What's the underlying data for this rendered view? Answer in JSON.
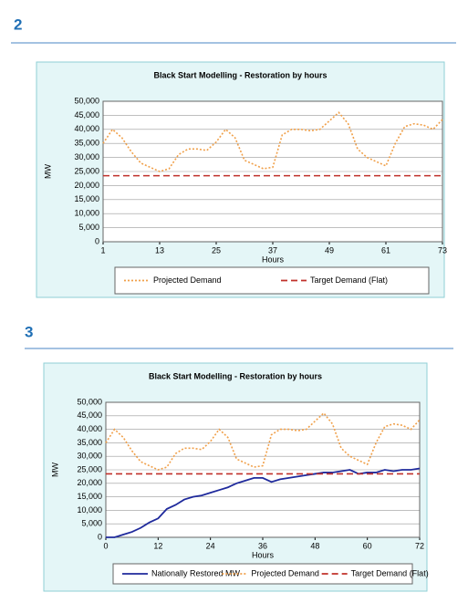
{
  "headings": [
    "2",
    "3"
  ],
  "chart_data": [
    {
      "type": "line",
      "title": "Black Start Modelling - Restoration by hours",
      "x_label": "Hours",
      "y_label": "MW",
      "xlim": [
        1,
        73
      ],
      "xticks": [
        1,
        13,
        25,
        37,
        49,
        61,
        73
      ],
      "ylim": [
        0,
        50000
      ],
      "yticks": [
        0,
        {
          "value": 5000,
          "label": "5,000"
        },
        {
          "value": 10000,
          "label": "10,000"
        },
        {
          "value": 15000,
          "label": "15,000"
        },
        {
          "value": 20000,
          "label": "20,000"
        },
        {
          "value": 25000,
          "label": "25,000"
        },
        {
          "value": 30000,
          "label": "30,000"
        },
        {
          "value": 35000,
          "label": "35,000"
        },
        {
          "value": 40000,
          "label": "40,000"
        },
        {
          "value": 45000,
          "label": "45,000"
        },
        {
          "value": 50000,
          "label": "50,000"
        }
      ],
      "grid": true,
      "series": [
        {
          "name": "Projected Demand",
          "color": "#f0a04a",
          "style": "dotted",
          "x": [
            1,
            3,
            5,
            7,
            9,
            11,
            13,
            15,
            17,
            19,
            21,
            23,
            25,
            27,
            29,
            31,
            33,
            35,
            37,
            39,
            41,
            43,
            45,
            47,
            49,
            51,
            53,
            55,
            57,
            59,
            61,
            63,
            65,
            67,
            69,
            71,
            73
          ],
          "values": [
            35000,
            40000,
            37000,
            32000,
            28000,
            26500,
            25000,
            26000,
            31000,
            33000,
            33000,
            32500,
            35500,
            40000,
            37000,
            29000,
            27500,
            26000,
            26500,
            38000,
            40000,
            40000,
            39500,
            40000,
            43000,
            46000,
            42000,
            33000,
            30000,
            28500,
            27000,
            35000,
            41000,
            42000,
            41500,
            40000,
            43500
          ]
        },
        {
          "name": "Target Demand (Flat)",
          "color": "#c0302a",
          "style": "dashed",
          "x": [
            1,
            73
          ],
          "values": [
            23500,
            23500
          ]
        }
      ]
    },
    {
      "type": "line",
      "title": "Black Start Modelling - Restoration by hours",
      "x_label": "Hours",
      "y_label": "MW",
      "xlim": [
        0,
        72
      ],
      "xticks": [
        0,
        12,
        24,
        36,
        48,
        60,
        72
      ],
      "ylim": [
        0,
        50000
      ],
      "yticks": [
        0,
        {
          "value": 5000,
          "label": "5,000"
        },
        {
          "value": 10000,
          "label": "10,000"
        },
        {
          "value": 15000,
          "label": "15,000"
        },
        {
          "value": 20000,
          "label": "20,000"
        },
        {
          "value": 25000,
          "label": "25,000"
        },
        {
          "value": 30000,
          "label": "30,000"
        },
        {
          "value": 35000,
          "label": "35,000"
        },
        {
          "value": 40000,
          "label": "40,000"
        },
        {
          "value": 45000,
          "label": "45,000"
        },
        {
          "value": 50000,
          "label": "50,000"
        }
      ],
      "grid": true,
      "series": [
        {
          "name": "Nationally Restored MW",
          "color": "#1f2a9c",
          "style": "solid",
          "x": [
            0,
            2,
            4,
            6,
            8,
            10,
            12,
            14,
            16,
            18,
            20,
            22,
            24,
            26,
            28,
            30,
            32,
            34,
            36,
            38,
            40,
            42,
            44,
            46,
            48,
            50,
            52,
            54,
            56,
            58,
            60,
            62,
            64,
            66,
            68,
            70,
            72
          ],
          "values": [
            0,
            0,
            1000,
            2000,
            3500,
            5500,
            7000,
            10500,
            12000,
            14000,
            15000,
            15500,
            16500,
            17500,
            18500,
            20000,
            21000,
            22000,
            22000,
            20500,
            21500,
            22000,
            22500,
            23000,
            23500,
            24000,
            24000,
            24500,
            25000,
            23500,
            24000,
            24000,
            25000,
            24500,
            25000,
            25000,
            25500
          ]
        },
        {
          "name": "Projected Demand",
          "color": "#f0a04a",
          "style": "dotted",
          "x": [
            0,
            2,
            4,
            6,
            8,
            10,
            12,
            14,
            16,
            18,
            20,
            22,
            24,
            26,
            28,
            30,
            32,
            34,
            36,
            38,
            40,
            42,
            44,
            46,
            48,
            50,
            52,
            54,
            56,
            58,
            60,
            62,
            64,
            66,
            68,
            70,
            72
          ],
          "values": [
            35000,
            40000,
            37000,
            32000,
            28000,
            26500,
            25000,
            26000,
            31000,
            33000,
            33000,
            32500,
            35500,
            40000,
            37000,
            29000,
            27500,
            26000,
            26500,
            38000,
            40000,
            40000,
            39500,
            40000,
            43000,
            46000,
            42000,
            33000,
            30000,
            28500,
            27000,
            35000,
            41000,
            42000,
            41500,
            40000,
            43500
          ]
        },
        {
          "name": "Target Demand (Flat)",
          "color": "#c0302a",
          "style": "dashed",
          "x": [
            0,
            72
          ],
          "values": [
            23500,
            23500
          ]
        }
      ]
    }
  ]
}
